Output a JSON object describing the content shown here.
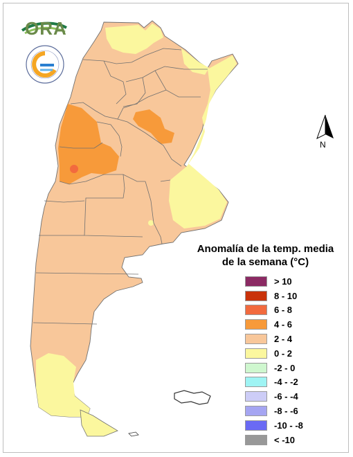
{
  "map": {
    "title_line1": "Anomalía de la temp. media",
    "title_line2": "de la semana (°C)",
    "north_label": "N",
    "logo_text": "ORA",
    "legend": [
      {
        "label": "> 10",
        "color": "#8b2a63"
      },
      {
        "label": "8 - 10",
        "color": "#c9320a"
      },
      {
        "label": "6 - 8",
        "color": "#f26a3e"
      },
      {
        "label": "4 - 6",
        "color": "#f79a3a"
      },
      {
        "label": "2 - 4",
        "color": "#f8c79a"
      },
      {
        "label": "0 - 2",
        "color": "#fbf79e"
      },
      {
        "label": "-2 - 0",
        "color": "#cff7cf"
      },
      {
        "label": "-4 - -2",
        "color": "#9ff4f4"
      },
      {
        "label": "-6 - -4",
        "color": "#cdcdf7"
      },
      {
        "label": "-8 - -6",
        "color": "#a5a5f2"
      },
      {
        "label": "-10 - -8",
        "color": "#6a6af4"
      },
      {
        "label": "< -10",
        "color": "#989898"
      }
    ]
  }
}
